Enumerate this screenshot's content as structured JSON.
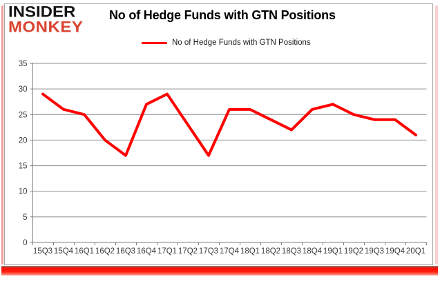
{
  "branding": {
    "logo_line1": "INSIDER",
    "logo_line2": "MONKEY",
    "logo_text_color": "#141414",
    "logo_accent_color": "#d9432f"
  },
  "header": {
    "title": "No of Hedge Funds with GTN Positions"
  },
  "legend": {
    "label": "No of Hedge Funds with GTN Positions",
    "line_color": "#ff0000"
  },
  "chart_data": {
    "type": "line",
    "title": "No of Hedge Funds with GTN Positions",
    "categories": [
      "15Q3",
      "15Q4",
      "16Q1",
      "16Q2",
      "16Q3",
      "16Q4",
      "17Q1",
      "17Q2",
      "17Q3",
      "17Q4",
      "18Q1",
      "18Q2",
      "18Q3",
      "18Q4",
      "19Q1",
      "19Q2",
      "19Q3",
      "19Q4",
      "20Q1"
    ],
    "series": [
      {
        "name": "No of Hedge Funds with GTN Positions",
        "color": "#ff0000",
        "values": [
          29,
          26,
          25,
          20,
          17,
          27,
          29,
          23,
          17,
          26,
          26,
          24,
          22,
          26,
          27,
          25,
          24,
          24,
          21
        ]
      }
    ],
    "ylim": [
      0,
      35
    ],
    "yticks": [
      0,
      5,
      10,
      15,
      20,
      25,
      30,
      35
    ],
    "grid": true,
    "legend_position": "top-center",
    "axis_color": "#7f7f7f",
    "gridline_color": "#8e8e8e",
    "tick_label_color": "#3a3a3a"
  }
}
